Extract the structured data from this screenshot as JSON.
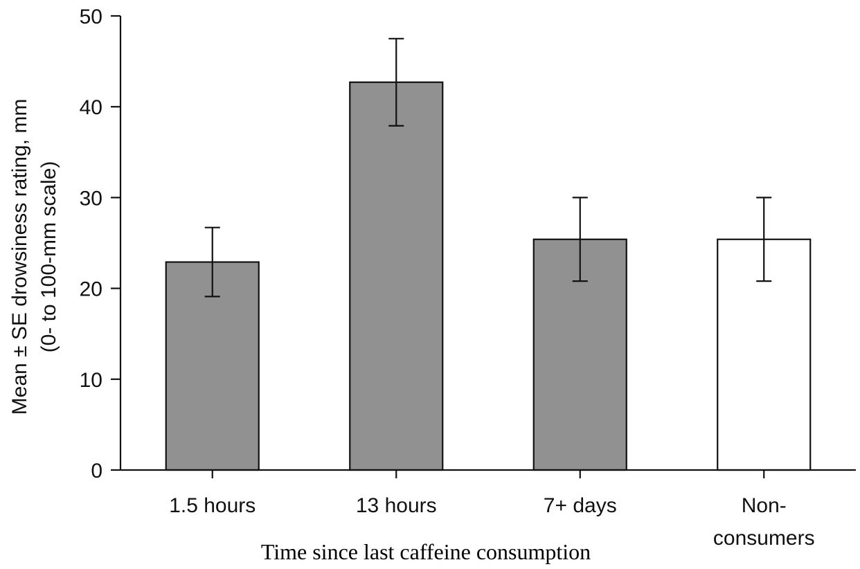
{
  "chart_data": {
    "type": "bar",
    "categories": [
      [
        "1.5 hours"
      ],
      [
        "13 hours"
      ],
      [
        "7+ days"
      ],
      [
        "Non-",
        "consumers"
      ]
    ],
    "values": [
      22.9,
      42.7,
      25.4,
      25.4
    ],
    "errors": [
      3.8,
      4.8,
      4.6,
      4.6
    ],
    "bar_colors": [
      "#919191",
      "#919191",
      "#919191",
      "#ffffff"
    ],
    "bar_edge_color": "#111111",
    "ylim": [
      0,
      50
    ],
    "yticks": [
      0,
      10,
      20,
      30,
      40,
      50
    ],
    "ylabel_lines": [
      "Mean ± SE drowsiness rating, mm",
      "(0- to 100-mm scale)"
    ],
    "xlabel": "Time since last caffeine consumption",
    "title": "",
    "grid": false
  }
}
